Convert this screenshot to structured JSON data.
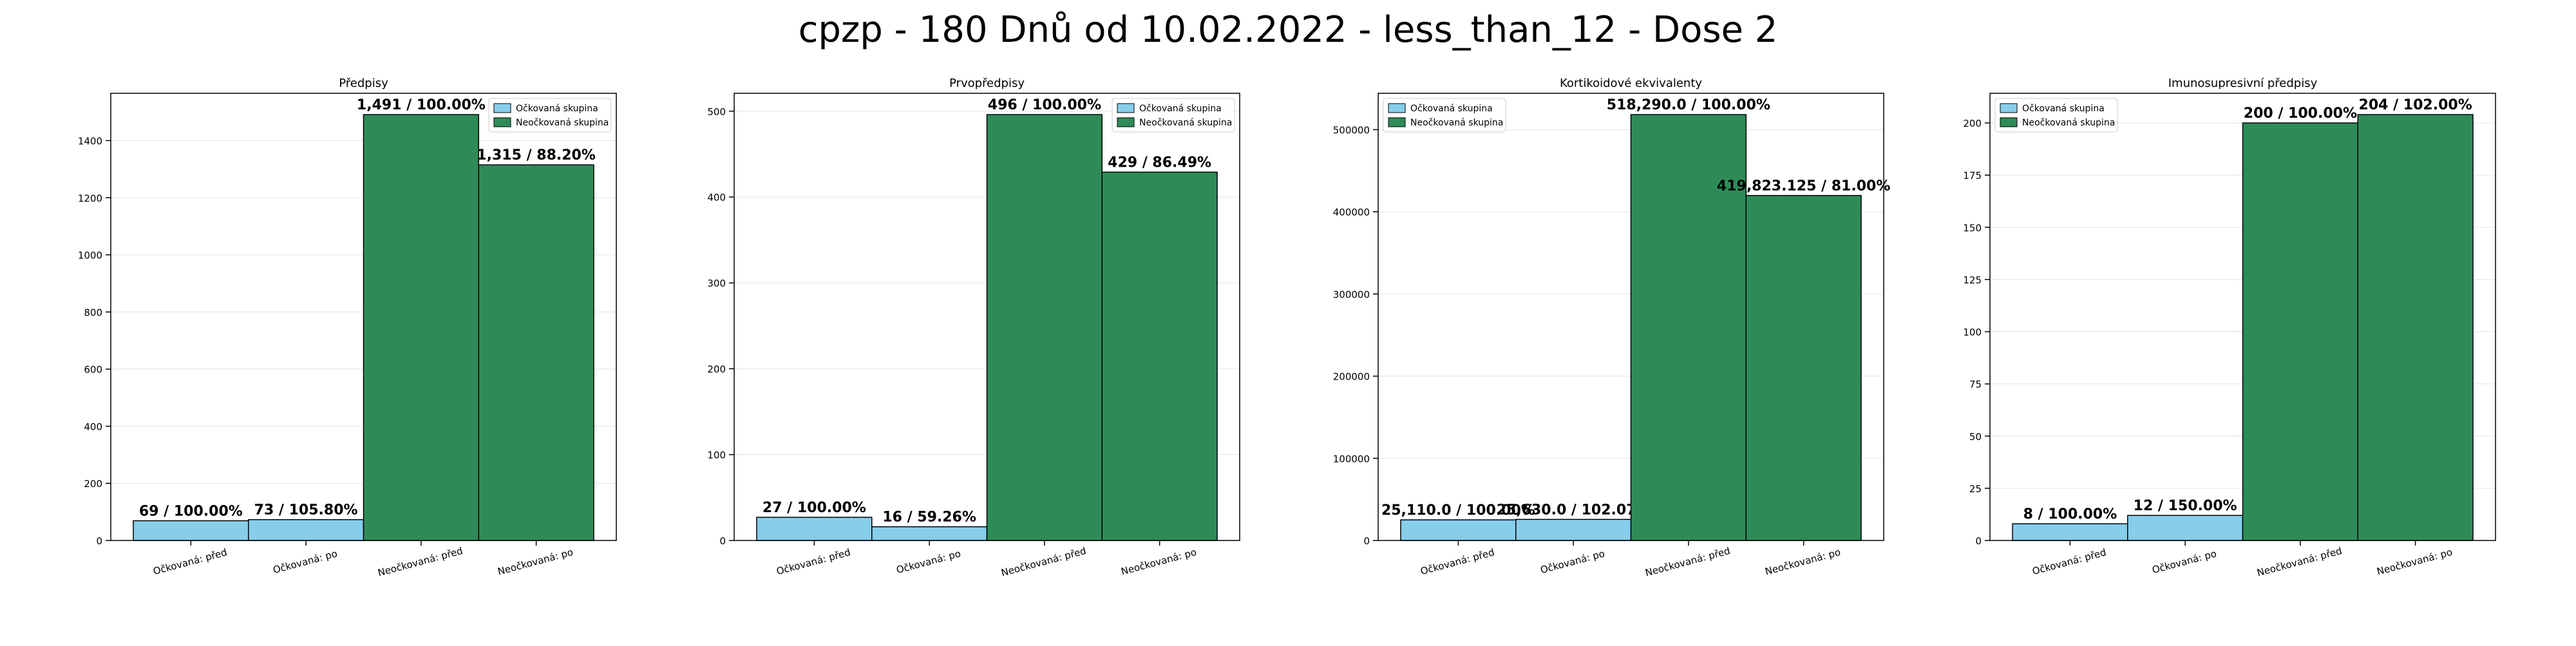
{
  "suptitle": "cpzp - 180 Dnů od 10.02.2022 - less_than_12 - Dose 2",
  "colors": {
    "vaccinated": "#87CEEB",
    "unvaccinated": "#2E8B57",
    "edge": "#000000"
  },
  "chart_data": [
    {
      "type": "bar",
      "title": "Předpisy",
      "categories": [
        "Očkovaná: před",
        "Očkovaná: po",
        "Neočkovaná: před",
        "Neočkovaná: po"
      ],
      "values": [
        69,
        73,
        1491,
        1315
      ],
      "groups": [
        "Očkovaná skupina",
        "Očkovaná skupina",
        "Neočkovaná skupina",
        "Neočkovaná skupina"
      ],
      "bar_labels": [
        "69 / 100.00%",
        "73 / 105.80%",
        "1,491 / 100.00%",
        "1,315 / 88.20%"
      ],
      "legend": [
        "Očkovaná skupina",
        "Neočkovaná skupina"
      ],
      "legend_loc": "upper right",
      "yticks": [
        0,
        200,
        400,
        600,
        800,
        1000,
        1200,
        1400
      ],
      "ytick_labels": [
        "0",
        "200",
        "400",
        "600",
        "800",
        "1000",
        "1200",
        "1400"
      ],
      "ylim": [
        0,
        1565.55
      ],
      "grid": true
    },
    {
      "type": "bar",
      "title": "Prvopředpisy",
      "categories": [
        "Očkovaná: před",
        "Očkovaná: po",
        "Neočkovaná: před",
        "Neočkovaná: po"
      ],
      "values": [
        27,
        16,
        496,
        429
      ],
      "groups": [
        "Očkovaná skupina",
        "Očkovaná skupina",
        "Neočkovaná skupina",
        "Neočkovaná skupina"
      ],
      "bar_labels": [
        "27 / 100.00%",
        "16 / 59.26%",
        "496 / 100.00%",
        "429 / 86.49%"
      ],
      "legend": [
        "Očkovaná skupina",
        "Neočkovaná skupina"
      ],
      "legend_loc": "upper right",
      "yticks": [
        0,
        100,
        200,
        300,
        400,
        500
      ],
      "ytick_labels": [
        "0",
        "100",
        "200",
        "300",
        "400",
        "500"
      ],
      "ylim": [
        0,
        520.8
      ],
      "grid": true
    },
    {
      "type": "bar",
      "title": "Kortikoidové ekvivalenty",
      "categories": [
        "Očkovaná: před",
        "Očkovaná: po",
        "Neočkovaná: před",
        "Neočkovaná: po"
      ],
      "values": [
        25110.0,
        25630.0,
        518290.0,
        419823.125
      ],
      "groups": [
        "Očkovaná skupina",
        "Očkovaná skupina",
        "Neočkovaná skupina",
        "Neočkovaná skupina"
      ],
      "bar_labels": [
        "25,110.0 / 100.00%",
        "25,630.0 / 102.07%",
        "518,290.0 / 100.00%",
        "419,823.125 / 81.00%"
      ],
      "legend": [
        "Očkovaná skupina",
        "Neočkovaná skupina"
      ],
      "legend_loc": "upper left",
      "yticks": [
        0,
        100000,
        200000,
        300000,
        400000,
        500000
      ],
      "ytick_labels": [
        "0",
        "100000",
        "200000",
        "300000",
        "400000",
        "500000"
      ],
      "ylim": [
        0,
        544204.5
      ],
      "grid": true
    },
    {
      "type": "bar",
      "title": "Imunosupresivní předpisy",
      "categories": [
        "Očkovaná: před",
        "Očkovaná: po",
        "Neočkovaná: před",
        "Neočkovaná: po"
      ],
      "values": [
        8,
        12,
        200,
        204
      ],
      "groups": [
        "Očkovaná skupina",
        "Očkovaná skupina",
        "Neočkovaná skupina",
        "Neočkovaná skupina"
      ],
      "bar_labels": [
        "8 / 100.00%",
        "12 / 150.00%",
        "200 / 100.00%",
        "204 / 102.00%"
      ],
      "legend": [
        "Očkovaná skupina",
        "Neočkovaná skupina"
      ],
      "legend_loc": "upper left",
      "yticks": [
        0,
        25,
        50,
        75,
        100,
        125,
        150,
        175,
        200
      ],
      "ytick_labels": [
        "0",
        "25",
        "50",
        "75",
        "100",
        "125",
        "150",
        "175",
        "200"
      ],
      "ylim": [
        0,
        214.2
      ],
      "grid": true
    }
  ]
}
